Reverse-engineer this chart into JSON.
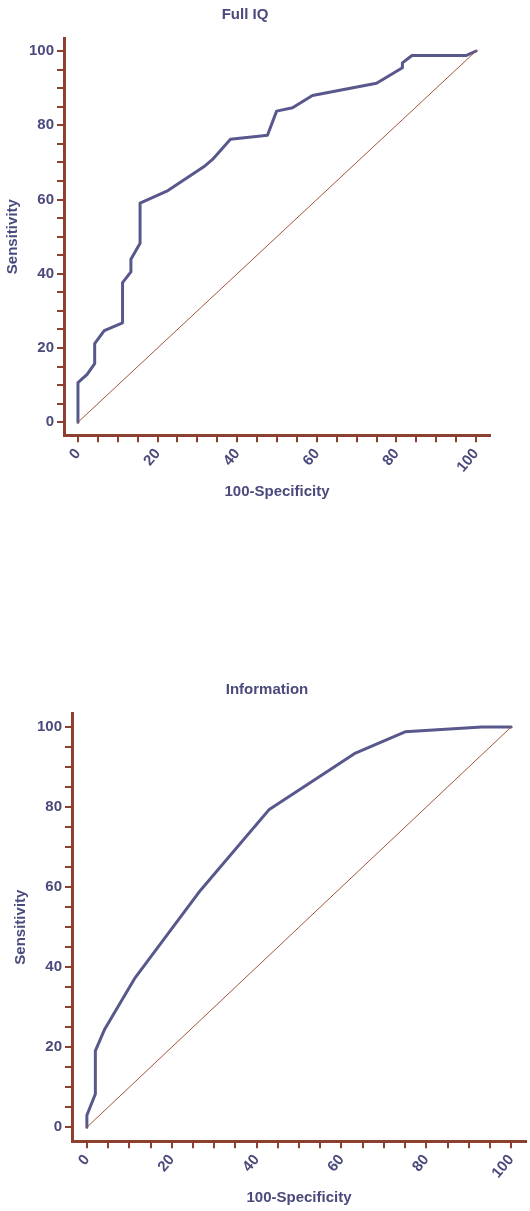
{
  "chart_data": [
    {
      "type": "line",
      "title": "Full IQ",
      "xlabel": "100-Specificity",
      "ylabel": "Sensitivity",
      "xlim": [
        -3.5,
        103.5
      ],
      "ylim": [
        -3.5,
        103.5
      ],
      "xticks": [
        0,
        {
          "value": 5,
          "label": null
        },
        {
          "value": 10,
          "label": null
        },
        {
          "value": 15,
          "label": null
        },
        20,
        {
          "value": 25,
          "label": null
        },
        {
          "value": 30,
          "label": null
        },
        {
          "value": 35,
          "label": null
        },
        40,
        {
          "value": 45,
          "label": null
        },
        {
          "value": 50,
          "label": null
        },
        {
          "value": 55,
          "label": null
        },
        60,
        {
          "value": 65,
          "label": null
        },
        {
          "value": 70,
          "label": null
        },
        {
          "value": 75,
          "label": null
        },
        80,
        {
          "value": 85,
          "label": null
        },
        {
          "value": 90,
          "label": null
        },
        {
          "value": 95,
          "label": null
        },
        100
      ],
      "yticks": [
        0,
        {
          "value": 5,
          "label": null
        },
        {
          "value": 10,
          "label": null
        },
        {
          "value": 15,
          "label": null
        },
        20,
        {
          "value": 25,
          "label": null
        },
        {
          "value": 30,
          "label": null
        },
        {
          "value": 35,
          "label": null
        },
        40,
        {
          "value": 45,
          "label": null
        },
        {
          "value": 50,
          "label": null
        },
        {
          "value": 55,
          "label": null
        },
        60,
        {
          "value": 65,
          "label": null
        },
        {
          "value": 70,
          "label": null
        },
        {
          "value": 75,
          "label": null
        },
        80,
        {
          "value": 85,
          "label": null
        },
        {
          "value": 90,
          "label": null
        },
        {
          "value": 95,
          "label": null
        },
        100
      ],
      "grid": false,
      "legend": false,
      "marker": "none",
      "line_style": "solid",
      "series": [
        {
          "color": "#58588c",
          "x": [
            0,
            0,
            2.3,
            4.2,
            4.2,
            6.6,
            11.2,
            11.2,
            13.3,
            13.3,
            15.6,
            15.6,
            22.6,
            31.6,
            33.8,
            38.3,
            47.6,
            49.9,
            53.9,
            58.9,
            75.0,
            81.5,
            81.5,
            83.9,
            97.6,
            100
          ],
          "values": [
            0,
            10.7,
            12.9,
            15.8,
            21.2,
            24.7,
            26.8,
            37.6,
            40.5,
            43.9,
            48.2,
            59.0,
            62.4,
            68.8,
            70.8,
            76.2,
            77.3,
            83.8,
            84.7,
            88.0,
            91.3,
            95.5,
            96.8,
            98.8,
            98.8,
            100
          ]
        },
        {
          "color": "#a0553a",
          "x": [
            0,
            100
          ],
          "values": [
            0,
            100
          ]
        }
      ]
    },
    {
      "type": "line",
      "title": "Information",
      "xlabel": "100-Specificity",
      "ylabel": "Sensitivity",
      "xlim": [
        -3.5,
        103.5
      ],
      "ylim": [
        -3.5,
        103.5
      ],
      "xticks": [
        0,
        {
          "value": 5,
          "label": null
        },
        {
          "value": 10,
          "label": null
        },
        {
          "value": 15,
          "label": null
        },
        20,
        {
          "value": 25,
          "label": null
        },
        {
          "value": 30,
          "label": null
        },
        {
          "value": 35,
          "label": null
        },
        40,
        {
          "value": 45,
          "label": null
        },
        {
          "value": 50,
          "label": null
        },
        {
          "value": 55,
          "label": null
        },
        60,
        {
          "value": 65,
          "label": null
        },
        {
          "value": 70,
          "label": null
        },
        {
          "value": 75,
          "label": null
        },
        80,
        {
          "value": 85,
          "label": null
        },
        {
          "value": 90,
          "label": null
        },
        {
          "value": 95,
          "label": null
        },
        100
      ],
      "yticks": [
        0,
        {
          "value": 5,
          "label": null
        },
        {
          "value": 10,
          "label": null
        },
        {
          "value": 15,
          "label": null
        },
        20,
        {
          "value": 25,
          "label": null
        },
        {
          "value": 30,
          "label": null
        },
        {
          "value": 35,
          "label": null
        },
        40,
        {
          "value": 45,
          "label": null
        },
        {
          "value": 50,
          "label": null
        },
        {
          "value": 55,
          "label": null
        },
        60,
        {
          "value": 65,
          "label": null
        },
        {
          "value": 70,
          "label": null
        },
        {
          "value": 75,
          "label": null
        },
        80,
        {
          "value": 85,
          "label": null
        },
        {
          "value": 90,
          "label": null
        },
        {
          "value": 95,
          "label": null
        },
        100
      ],
      "grid": false,
      "legend": false,
      "marker": "none",
      "line_style": "solid",
      "series": [
        {
          "color": "#58588c",
          "x": [
            0,
            0,
            2.0,
            2.0,
            4.2,
            11.4,
            26.7,
            42.9,
            63.3,
            75.0,
            93.1,
            100
          ],
          "values": [
            0,
            3.0,
            8.3,
            19.1,
            24.5,
            37.4,
            59.1,
            79.3,
            93.5,
            98.8,
            100,
            100
          ]
        },
        {
          "color": "#a0553a",
          "x": [
            0,
            100
          ],
          "values": [
            0,
            100
          ]
        }
      ]
    }
  ]
}
